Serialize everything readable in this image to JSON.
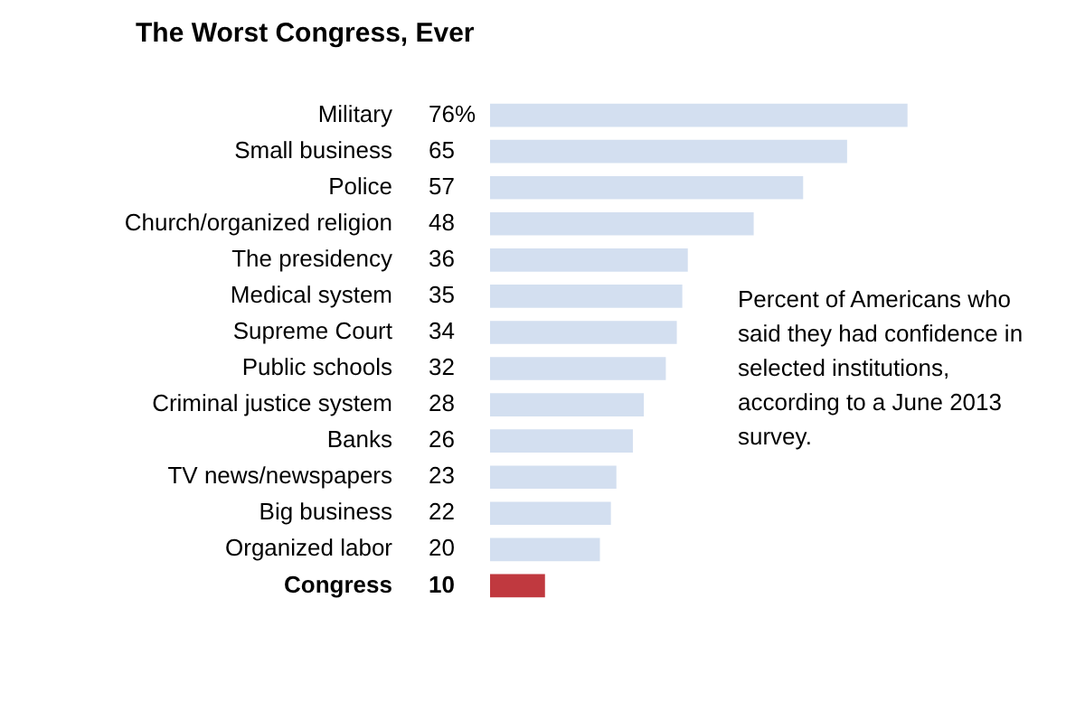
{
  "chart_data": {
    "type": "bar",
    "orientation": "horizontal",
    "title": "The Worst Congress, Ever",
    "categories": [
      "Military",
      "Small business",
      "Police",
      "Church/organized religion",
      "The presidency",
      "Medical system",
      "Supreme Court",
      "Public schools",
      "Criminal justice system",
      "Banks",
      "TV news/newspapers",
      "Big business",
      "Organized labor",
      "Congress"
    ],
    "values": [
      76,
      65,
      57,
      48,
      36,
      35,
      34,
      32,
      28,
      26,
      23,
      22,
      20,
      10
    ],
    "value_labels": [
      "76%",
      "65",
      "57",
      "48",
      "36",
      "35",
      "34",
      "32",
      "28",
      "26",
      "23",
      "22",
      "20",
      "10"
    ],
    "colors": [
      "#d3dff0",
      "#d3dff0",
      "#d3dff0",
      "#d3dff0",
      "#d3dff0",
      "#d3dff0",
      "#d3dff0",
      "#d3dff0",
      "#d3dff0",
      "#d3dff0",
      "#d3dff0",
      "#d3dff0",
      "#d3dff0",
      "#c0393f"
    ],
    "tick_labels": "y",
    "legend": false,
    "annotations": [
      "Percent of Americans who said they had confidence in selected institutions, according to a June 2013 survey."
    ]
  }
}
